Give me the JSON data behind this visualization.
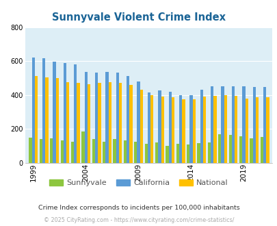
{
  "title": "Sunnyvale Violent Crime Index",
  "title_color": "#1a6496",
  "plot_bg_color": "#ddeef6",
  "fig_bg_color": "#ffffff",
  "years": [
    1999,
    2000,
    2001,
    2002,
    2003,
    2004,
    2005,
    2006,
    2007,
    2008,
    2009,
    2010,
    2011,
    2012,
    2013,
    2014,
    2015,
    2016,
    2017,
    2018,
    2019,
    2020,
    2021
  ],
  "sunnyvale": [
    148,
    138,
    145,
    130,
    125,
    185,
    140,
    125,
    140,
    130,
    125,
    110,
    120,
    100,
    113,
    107,
    115,
    120,
    170,
    165,
    155,
    145,
    150
  ],
  "california": [
    620,
    615,
    595,
    590,
    580,
    535,
    530,
    535,
    530,
    510,
    480,
    415,
    425,
    420,
    400,
    400,
    430,
    450,
    450,
    450,
    450,
    445,
    445
  ],
  "national": [
    510,
    505,
    500,
    475,
    470,
    465,
    470,
    475,
    470,
    460,
    430,
    400,
    390,
    385,
    375,
    373,
    390,
    395,
    400,
    395,
    380,
    385,
    385
  ],
  "sunnyvale_color": "#8dc63f",
  "california_color": "#5b9bd5",
  "national_color": "#ffc000",
  "ylim": [
    0,
    800
  ],
  "yticks": [
    0,
    200,
    400,
    600,
    800
  ],
  "xtick_years": [
    1999,
    2004,
    2009,
    2014,
    2019
  ],
  "subtitle": "Crime Index corresponds to incidents per 100,000 inhabitants",
  "footer": "© 2025 CityRating.com - https://www.cityrating.com/crime-statistics/",
  "legend_labels": [
    "Sunnyvale",
    "California",
    "National"
  ],
  "bar_width": 0.28,
  "grid_color": "#ffffff"
}
